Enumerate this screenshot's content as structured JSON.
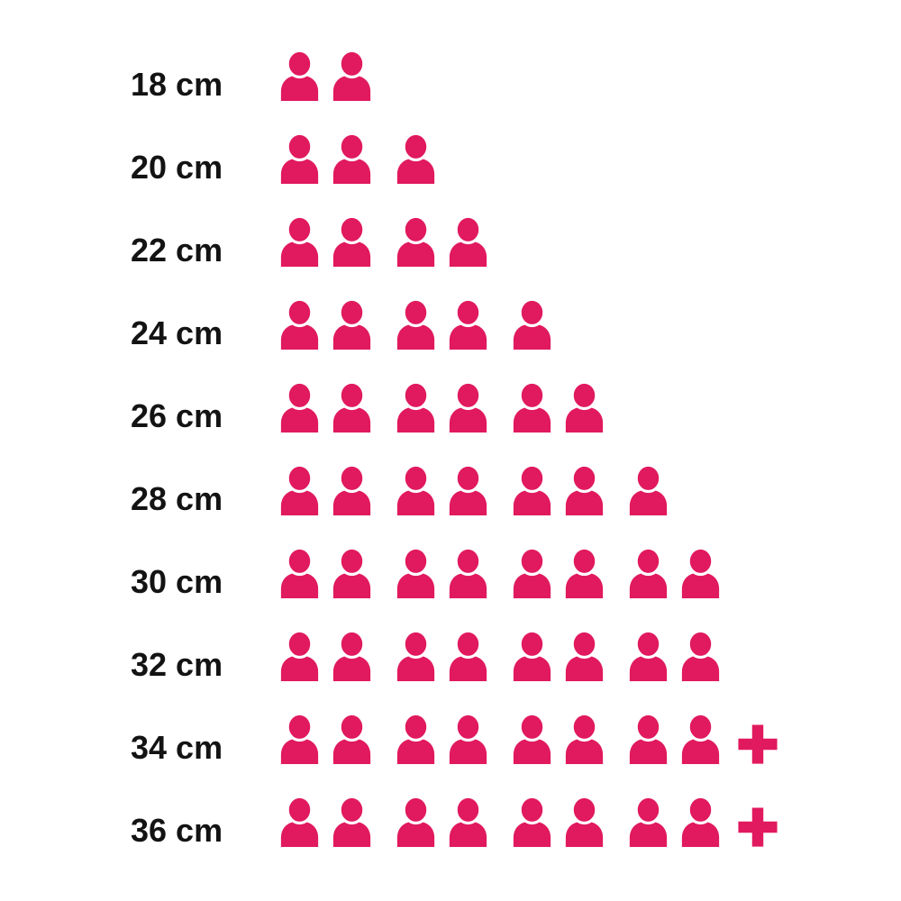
{
  "page": {
    "background_color": "#ffffff"
  },
  "chart_data": {
    "type": "pictogram",
    "icon": "person",
    "icon_color": "#e1195e",
    "label_color": "#131313",
    "plus_symbol": "+",
    "group_size": 2,
    "legend_position": "none",
    "grid": false,
    "categories": [
      "18 cm",
      "20 cm",
      "22 cm",
      "24 cm",
      "26 cm",
      "28 cm",
      "30 cm",
      "32 cm",
      "34 cm",
      "36 cm"
    ],
    "values": [
      2,
      3,
      4,
      5,
      6,
      7,
      8,
      8,
      8,
      8
    ],
    "overflow": [
      false,
      false,
      false,
      false,
      false,
      false,
      false,
      false,
      true,
      true
    ],
    "value_display": [
      "2",
      "3",
      "4",
      "5",
      "6",
      "7",
      "8",
      "8",
      "8+",
      "8+"
    ]
  }
}
